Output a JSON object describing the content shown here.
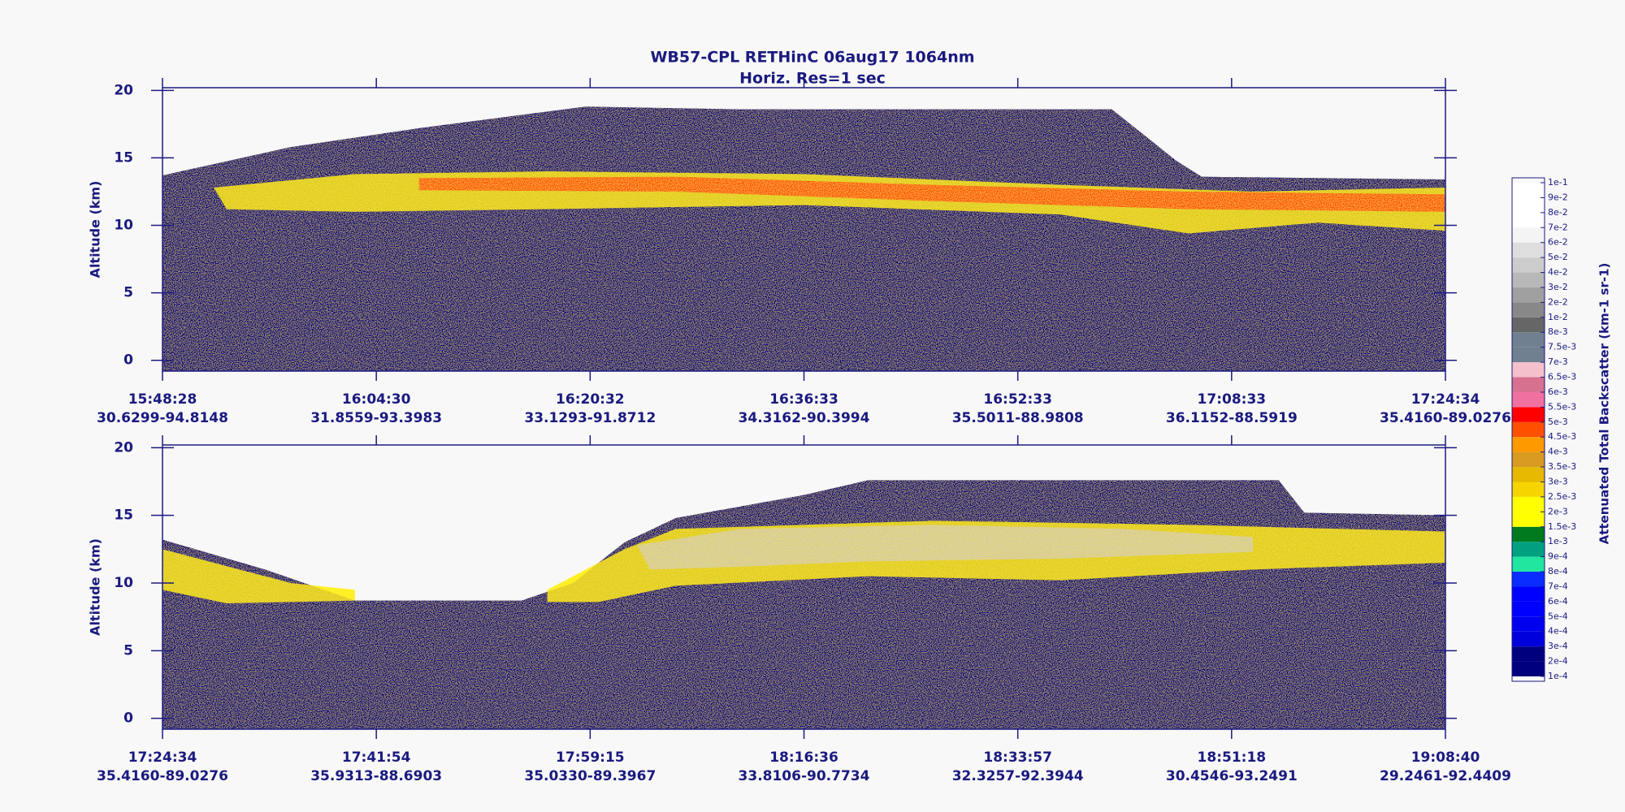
{
  "title": "WB57-CPL  RETHinC  06aug17  1064nm",
  "subtitle": "Horiz. Res=1 sec",
  "chart_data": [
    {
      "type": "curtain",
      "ylabel": "Altitude (km)",
      "ylim": [
        -0.8,
        20.2
      ],
      "yticks": [
        0,
        5,
        10,
        15,
        20
      ],
      "categories": [
        "15:48:28",
        "16:04:30",
        "16:20:32",
        "16:36:33",
        "16:52:33",
        "17:08:33",
        "17:24:34"
      ],
      "locations": [
        "30.6299-94.8148",
        "31.8559-93.3983",
        "33.1293-91.8712",
        "34.3162-90.3994",
        "35.5011-88.9808",
        "36.1152-88.5919",
        "35.4160-89.0276"
      ]
    },
    {
      "type": "curtain",
      "ylabel": "Altitude (km)",
      "ylim": [
        -0.8,
        20.2
      ],
      "yticks": [
        0,
        5,
        10,
        15,
        20
      ],
      "categories": [
        "17:24:34",
        "17:41:54",
        "17:59:15",
        "18:16:36",
        "18:33:57",
        "18:51:18",
        "19:08:40"
      ],
      "locations": [
        "35.4160-89.0276",
        "35.9313-88.6903",
        "35.0330-89.3967",
        "33.8106-90.7734",
        "32.3257-92.3944",
        "30.4546-93.2491",
        "29.2461-92.4409"
      ]
    }
  ],
  "colorbar": {
    "label": "Attenuated Total Backscatter (km-1 sr-1)",
    "ticks": [
      {
        "value": 0.0001,
        "label": "1e-4"
      },
      {
        "value": 0.0002,
        "label": "2e-4"
      },
      {
        "value": 0.0003,
        "label": "3e-4"
      },
      {
        "value": 0.0004,
        "label": "4e-4"
      },
      {
        "value": 0.0005,
        "label": "5e-4"
      },
      {
        "value": 0.0006,
        "label": "6e-4"
      },
      {
        "value": 0.0007,
        "label": "7e-4"
      },
      {
        "value": 0.0008,
        "label": "8e-4"
      },
      {
        "value": 0.0009,
        "label": "9e-4"
      },
      {
        "value": 0.001,
        "label": "1e-3"
      },
      {
        "value": 0.0015,
        "label": "1.5e-3"
      },
      {
        "value": 0.002,
        "label": "2e-3"
      },
      {
        "value": 0.0025,
        "label": "2.5e-3"
      },
      {
        "value": 0.003,
        "label": "3e-3"
      },
      {
        "value": 0.0035,
        "label": "3.5e-3"
      },
      {
        "value": 0.004,
        "label": "4e-3"
      },
      {
        "value": 0.0045,
        "label": "4.5e-3"
      },
      {
        "value": 0.005,
        "label": "5e-3"
      },
      {
        "value": 0.0055,
        "label": "5.5e-3"
      },
      {
        "value": 0.006,
        "label": "6e-3"
      },
      {
        "value": 0.0065,
        "label": "6.5e-3"
      },
      {
        "value": 0.007,
        "label": "7e-3"
      },
      {
        "value": 0.0075,
        "label": "7.5e-3"
      },
      {
        "value": 0.008,
        "label": "8e-3"
      },
      {
        "value": 0.01,
        "label": "1e-2"
      },
      {
        "value": 0.02,
        "label": "2e-2"
      },
      {
        "value": 0.03,
        "label": "3e-2"
      },
      {
        "value": 0.04,
        "label": "4e-2"
      },
      {
        "value": 0.05,
        "label": "5e-2"
      },
      {
        "value": 0.06,
        "label": "6e-2"
      },
      {
        "value": 0.07,
        "label": "7e-2"
      },
      {
        "value": 0.08,
        "label": "8e-2"
      },
      {
        "value": 0.09,
        "label": "9e-2"
      },
      {
        "value": 0.1,
        "label": "1e-1"
      }
    ],
    "colors": [
      "#00007f",
      "#00007f",
      "#0000dd",
      "#0000ee",
      "#0000ff",
      "#0000ff",
      "#0a2cff",
      "#20e6a0",
      "#00a080",
      "#007a1e",
      "#ffff00",
      "#ffff00",
      "#f6d400",
      "#e6b800",
      "#d89a20",
      "#ff9900",
      "#ff5000",
      "#ff0000",
      "#f070a0",
      "#d87090",
      "#f4c0cc",
      "#708090",
      "#708090",
      "#666666",
      "#888888",
      "#a0a0a0",
      "#b8b8b8",
      "#cccccc",
      "#dedede",
      "#f4f4f4",
      "#ffffff",
      "#ffffff",
      "#ffffff"
    ]
  }
}
